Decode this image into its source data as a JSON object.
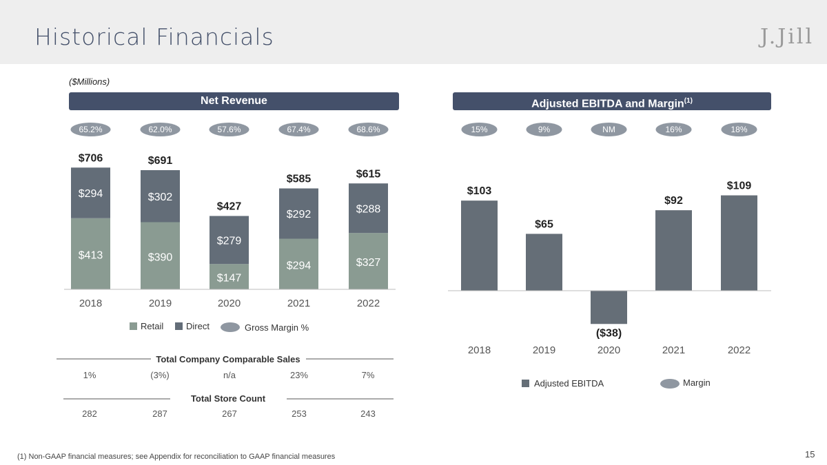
{
  "page": {
    "title": "Historical Financials",
    "logo": "J.Jill",
    "units": "($Millions)",
    "footnote": "(1) Non-GAAP financial measures; see Appendix for reconciliation to GAAP financial measures",
    "page_number": "15"
  },
  "colors": {
    "retail": "#8a9b92",
    "direct": "#636d78",
    "ebitda": "#656e77",
    "banner": "#44506a",
    "pill": "#8f97a1"
  },
  "chart_data": [
    {
      "type": "bar",
      "title": "Net Revenue",
      "stacked": true,
      "categories": [
        "2018",
        "2019",
        "2020",
        "2021",
        "2022"
      ],
      "series": [
        {
          "name": "Retail",
          "values": [
            413,
            390,
            147,
            294,
            327
          ],
          "labels": [
            "$413",
            "$390",
            "$147",
            "$294",
            "$327"
          ]
        },
        {
          "name": "Direct",
          "values": [
            294,
            302,
            279,
            292,
            288
          ],
          "labels": [
            "$294",
            "$302",
            "$279",
            "$292",
            "$288"
          ]
        }
      ],
      "totals": [
        "$706",
        "$691",
        "$427",
        "$585",
        "$615"
      ],
      "gross_margin": [
        "65.2%",
        "62.0%",
        "57.6%",
        "67.4%",
        "68.6%"
      ],
      "legend": {
        "retail": "Retail",
        "direct": "Direct",
        "margin": "Gross Margin %"
      },
      "ylim": [
        0,
        720
      ]
    },
    {
      "type": "bar",
      "title": "Adjusted EBITDA and Margin",
      "title_sup": "(1)",
      "categories": [
        "2018",
        "2019",
        "2020",
        "2021",
        "2022"
      ],
      "series": [
        {
          "name": "Adjusted EBITDA",
          "values": [
            103,
            65,
            -38,
            92,
            109
          ]
        }
      ],
      "labels": [
        "$103",
        "$65",
        "($38)",
        "$92",
        "$109"
      ],
      "margin": [
        "15%",
        "9%",
        "NM",
        "16%",
        "18%"
      ],
      "legend": {
        "ebitda": "Adjusted EBITDA",
        "margin": "Margin"
      },
      "ylim": [
        -40,
        115
      ]
    }
  ],
  "comparable_sales": {
    "title": "Total Company Comparable Sales",
    "values": [
      "1%",
      "(3%)",
      "n/a",
      "23%",
      "7%"
    ]
  },
  "store_count": {
    "title": "Total Store Count",
    "values": [
      "282",
      "287",
      "267",
      "253",
      "243"
    ]
  }
}
